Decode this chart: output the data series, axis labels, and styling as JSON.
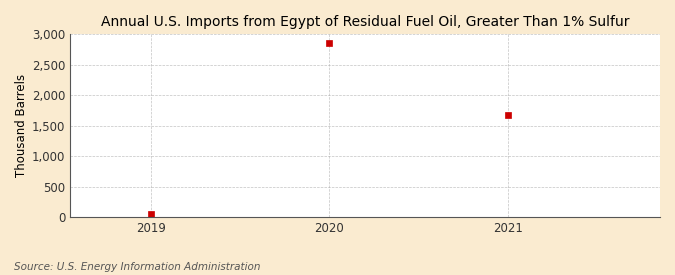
{
  "title": "Annual U.S. Imports from Egypt of Residual Fuel Oil, Greater Than 1% Sulfur",
  "ylabel": "Thousand Barrels",
  "source": "Source: U.S. Energy Information Administration",
  "x_values": [
    2019,
    2020,
    2021
  ],
  "y_values": [
    50,
    2850,
    1680
  ],
  "xlim": [
    2018.55,
    2021.85
  ],
  "ylim": [
    0,
    3000
  ],
  "yticks": [
    0,
    500,
    1000,
    1500,
    2000,
    2500,
    3000
  ],
  "ytick_labels": [
    "0",
    "500",
    "1,000",
    "1,500",
    "2,000",
    "2,500",
    "3,000"
  ],
  "xticks": [
    2019,
    2020,
    2021
  ],
  "marker_color": "#cc0000",
  "bg_color": "#faebd0",
  "plot_bg_color": "#ffffff",
  "grid_color": "#aaaaaa",
  "title_fontsize": 10,
  "label_fontsize": 8.5,
  "tick_fontsize": 8.5,
  "source_fontsize": 7.5
}
